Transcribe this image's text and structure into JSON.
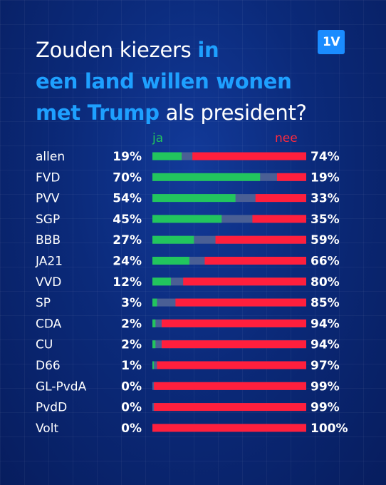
{
  "title": {
    "part1": "Zouden kiezers ",
    "part2_hl": "in",
    "part3_hl": "een land willen wonen",
    "part4_hl": "met Trump",
    "part5": " als president?"
  },
  "logo": "1V",
  "colors": {
    "ja": "#22c55e",
    "nee": "#ff1f3d",
    "neutral": "#4a5f95",
    "title_highlight": "#1ea0ff",
    "background": "#0b2a7a"
  },
  "chart_data": {
    "type": "bar",
    "stacked": true,
    "orientation": "horizontal",
    "title": "Zouden kiezers in een land willen wonen met Trump als president?",
    "legend": [
      "ja",
      "nee"
    ],
    "categories": [
      "allen",
      "FVD",
      "PVV",
      "SGP",
      "BBB",
      "JA21",
      "VVD",
      "SP",
      "CDA",
      "CU",
      "D66",
      "GL-PvdA",
      "PvdD",
      "Volt"
    ],
    "series": [
      {
        "name": "ja",
        "values": [
          19,
          70,
          54,
          45,
          27,
          24,
          12,
          3,
          2,
          2,
          1,
          0,
          0,
          0
        ]
      },
      {
        "name": "nee",
        "values": [
          74,
          19,
          33,
          35,
          59,
          66,
          80,
          85,
          94,
          94,
          97,
          99,
          99,
          100
        ]
      }
    ],
    "xlim": [
      0,
      100
    ]
  }
}
